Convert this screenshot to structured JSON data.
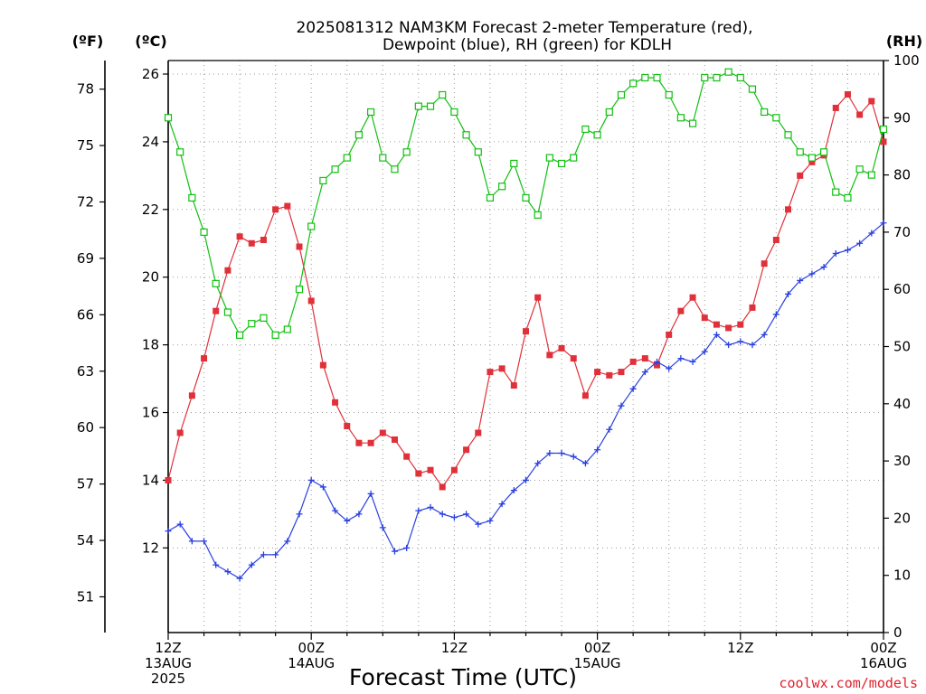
{
  "title_line1": "2025081312 NAM3KM Forecast 2-meter Temperature (red),",
  "title_line2": "Dewpoint (blue), RH (green) for KDLH",
  "unit_f": "(ºF)",
  "unit_c": "(ºC)",
  "unit_rh": "(RH)",
  "credit": "coolwx.com/models",
  "colors": {
    "temperature": "#e0303a",
    "dewpoint": "#2a3fe0",
    "rh": "#10c010",
    "grid": "#9a9a9a"
  },
  "chart_data": {
    "type": "line",
    "title": "2025081312 NAM3KM Forecast 2-meter Temperature (red), Dewpoint (blue), RH (green) for KDLH",
    "xlabel": "Forecast Time (UTC)",
    "x_unit": "forecast hour",
    "xlim": [
      0,
      60
    ],
    "x_ticks": [
      {
        "x": 0,
        "lines": [
          "12Z",
          "13AUG",
          "2025"
        ]
      },
      {
        "x": 12,
        "lines": [
          "00Z",
          "14AUG"
        ]
      },
      {
        "x": 24,
        "lines": [
          "12Z"
        ]
      },
      {
        "x": 36,
        "lines": [
          "00Z",
          "15AUG"
        ]
      },
      {
        "x": 48,
        "lines": [
          "12Z"
        ]
      },
      {
        "x": 60,
        "lines": [
          "00Z",
          "16AUG"
        ]
      }
    ],
    "axes": {
      "celsius": {
        "label": "(ºC)",
        "range": [
          9.5,
          26.4
        ],
        "ticks": [
          "12",
          "14",
          "16",
          "18",
          "20",
          "22",
          "24",
          "26"
        ]
      },
      "fahrenheit": {
        "label": "(ºF)",
        "ticks": [
          "51",
          "54",
          "57",
          "60",
          "63",
          "66",
          "69",
          "72",
          "75",
          "78"
        ]
      },
      "rh": {
        "label": "(RH)",
        "range": [
          0,
          100
        ],
        "ticks": [
          "0",
          "10",
          "20",
          "30",
          "40",
          "50",
          "60",
          "70",
          "80",
          "90",
          "100"
        ]
      }
    },
    "grid": true,
    "series": [
      {
        "name": "Temperature",
        "axis": "celsius",
        "marker": "filled-square",
        "values": [
          14.0,
          15.4,
          16.5,
          17.6,
          19.0,
          20.2,
          21.2,
          21.0,
          21.1,
          22.0,
          22.1,
          20.9,
          19.3,
          17.4,
          16.3,
          15.6,
          15.1,
          15.1,
          15.4,
          15.2,
          14.7,
          14.2,
          14.3,
          13.8,
          14.3,
          14.9,
          15.4,
          17.2,
          17.3,
          16.8,
          18.4,
          19.4,
          17.7,
          17.9,
          17.6,
          16.5,
          17.2,
          17.1,
          17.2,
          17.5,
          17.6,
          17.4,
          18.3,
          19.0,
          19.4,
          18.8,
          18.6,
          18.5,
          18.6,
          19.1,
          20.4,
          21.1,
          22.0,
          23.0,
          23.4,
          23.6,
          25.0,
          25.4,
          24.8,
          25.2,
          24.0
        ]
      },
      {
        "name": "Dewpoint",
        "axis": "celsius",
        "marker": "plus",
        "values": [
          12.5,
          12.7,
          12.2,
          12.2,
          11.5,
          11.3,
          11.1,
          11.5,
          11.8,
          11.8,
          12.2,
          13.0,
          14.0,
          13.8,
          13.1,
          12.8,
          13.0,
          13.6,
          12.6,
          11.9,
          12.0,
          13.1,
          13.2,
          13.0,
          12.9,
          13.0,
          12.7,
          12.8,
          13.3,
          13.7,
          14.0,
          14.5,
          14.8,
          14.8,
          14.7,
          14.5,
          14.9,
          15.5,
          16.2,
          16.7,
          17.2,
          17.5,
          17.3,
          17.6,
          17.5,
          17.8,
          18.3,
          18.0,
          18.1,
          18.0,
          18.3,
          18.9,
          19.5,
          19.9,
          20.1,
          20.3,
          20.7,
          20.8,
          21.0,
          21.3,
          21.6
        ]
      },
      {
        "name": "RH",
        "axis": "rh",
        "marker": "open-square",
        "values": [
          90,
          84,
          76,
          70,
          61,
          56,
          52,
          54,
          55,
          52,
          53,
          60,
          71,
          79,
          81,
          83,
          87,
          91,
          83,
          81,
          84,
          92,
          92,
          94,
          91,
          87,
          84,
          76,
          78,
          82,
          76,
          73,
          83,
          82,
          83,
          88,
          87,
          91,
          94,
          96,
          97,
          97,
          94,
          90,
          89,
          97,
          97,
          98,
          97,
          95,
          91,
          90,
          87,
          84,
          83,
          84,
          77,
          76,
          81,
          80,
          88
        ]
      }
    ]
  }
}
